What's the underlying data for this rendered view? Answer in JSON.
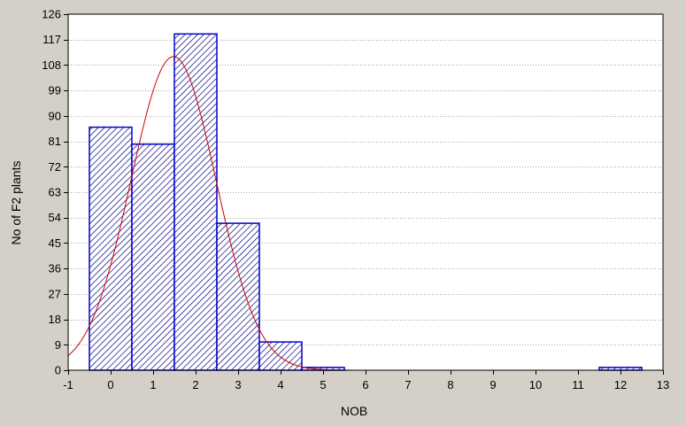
{
  "chart_data": {
    "type": "bar",
    "title": "",
    "xlabel": "NOB",
    "ylabel": "No of F2 plants",
    "xlim": [
      -1,
      13
    ],
    "ylim": [
      0,
      126
    ],
    "x_ticks": [
      -1,
      0,
      1,
      2,
      3,
      4,
      5,
      6,
      7,
      8,
      9,
      10,
      11,
      12,
      13
    ],
    "y_ticks": [
      0,
      9,
      18,
      27,
      36,
      45,
      54,
      63,
      72,
      81,
      90,
      99,
      108,
      117,
      126
    ],
    "grid": "horizontal dotted",
    "categories": [
      0,
      1,
      2,
      3,
      4,
      5,
      6,
      7,
      8,
      9,
      10,
      11,
      12
    ],
    "values": [
      86,
      80,
      119,
      52,
      10,
      1,
      0,
      0,
      0,
      0,
      0,
      0,
      1
    ],
    "bar_fill": "#ffffff",
    "bar_hatch_color": "#000080",
    "bar_border_color": "#0000cc",
    "fit_curve": {
      "type": "normal",
      "mean": 1.48,
      "sd": 1.0,
      "peak": 111,
      "color": "#cc0000"
    }
  }
}
